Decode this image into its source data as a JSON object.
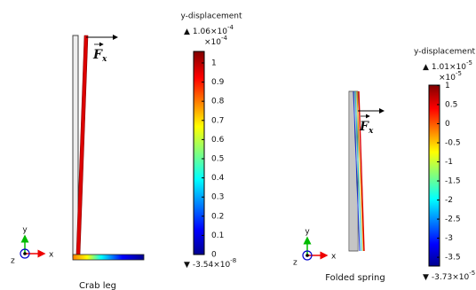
{
  "panels": [
    {
      "colorbar": {
        "title": "y-displacement",
        "max_label": {
          "symbol": "▲",
          "mantissa": "1.06×10",
          "exponent": "-4"
        },
        "multiplier": {
          "base": "×10",
          "exponent": "-4"
        },
        "range": [
          0,
          1.06
        ],
        "ticks": [
          0,
          0.1,
          0.2,
          0.3,
          0.4,
          0.5,
          0.6,
          0.7,
          0.8,
          0.9,
          1
        ],
        "min_label": {
          "symbol": "▼",
          "mantissa": "-3.54×10",
          "exponent": "-8"
        }
      },
      "force": {
        "symbol": "F",
        "subscript": "x"
      },
      "axes": {
        "x": "x",
        "y": "y",
        "z": "z"
      },
      "caption": "Crab leg"
    },
    {
      "colorbar": {
        "title": "y-displacement",
        "max_label": {
          "symbol": "▲",
          "mantissa": "1.01×10",
          "exponent": "-5"
        },
        "multiplier": {
          "base": "×10",
          "exponent": "-5"
        },
        "range": [
          -3.73,
          1.01
        ],
        "ticks": [
          -3.5,
          -3,
          -2.5,
          -2,
          -1.5,
          -1,
          -0.5,
          0,
          0.5,
          1
        ],
        "min_label": {
          "symbol": "▼",
          "mantissa": "-3.73×10",
          "exponent": "-5"
        }
      },
      "force": {
        "symbol": "F",
        "subscript": "x"
      },
      "axes": {
        "x": "x",
        "y": "y",
        "z": "z"
      },
      "caption": "Folded spring"
    }
  ]
}
